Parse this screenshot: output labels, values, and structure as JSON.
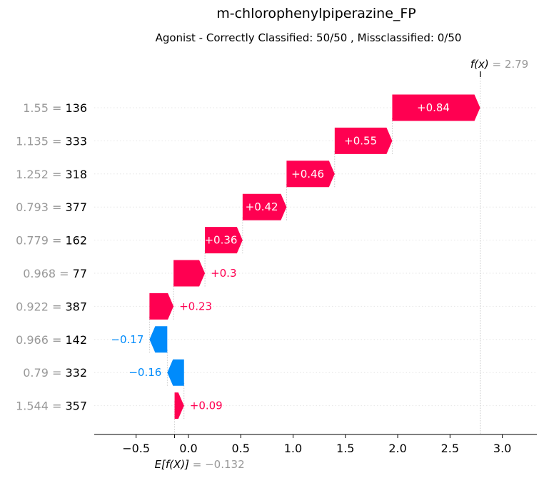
{
  "chart_data": {
    "type": "waterfall",
    "title": "m-chlorophenylpiperazine_FP",
    "subtitle": "Agonist - Correctly Classified: 50/50 , Missclassified: 0/50",
    "base_value": -0.132,
    "output_value": 2.79,
    "base_label": "E[f(X)]",
    "base_value_text": "= −0.132",
    "output_label": "f(x)",
    "output_value_text": "= 2.79",
    "xlim": [
      -0.9,
      3.33
    ],
    "xticks": [
      -0.5,
      0.0,
      0.5,
      1.0,
      1.5,
      2.0,
      2.5,
      3.0
    ],
    "xtick_labels": [
      "−0.5",
      "0.0",
      "0.5",
      "1.0",
      "1.5",
      "2.0",
      "2.5",
      "3.0"
    ],
    "features": [
      {
        "value": "1.55",
        "feature": "136",
        "contribution": 0.84,
        "label": "+0.84"
      },
      {
        "value": "1.135",
        "feature": "333",
        "contribution": 0.55,
        "label": "+0.55"
      },
      {
        "value": "1.252",
        "feature": "318",
        "contribution": 0.46,
        "label": "+0.46"
      },
      {
        "value": "0.793",
        "feature": "377",
        "contribution": 0.42,
        "label": "+0.42"
      },
      {
        "value": "0.779",
        "feature": "162",
        "contribution": 0.36,
        "label": "+0.36"
      },
      {
        "value": "0.968",
        "feature": "77",
        "contribution": 0.3,
        "label": "+0.3"
      },
      {
        "value": "0.922",
        "feature": "387",
        "contribution": 0.23,
        "label": "+0.23"
      },
      {
        "value": "0.966",
        "feature": "142",
        "contribution": -0.17,
        "label": "−0.17"
      },
      {
        "value": "0.79",
        "feature": "332",
        "contribution": -0.16,
        "label": "−0.16"
      },
      {
        "value": "1.544",
        "feature": "357",
        "contribution": 0.09,
        "label": "+0.09"
      }
    ],
    "colors": {
      "positive": "#ff0051",
      "negative": "#008bfb"
    }
  }
}
